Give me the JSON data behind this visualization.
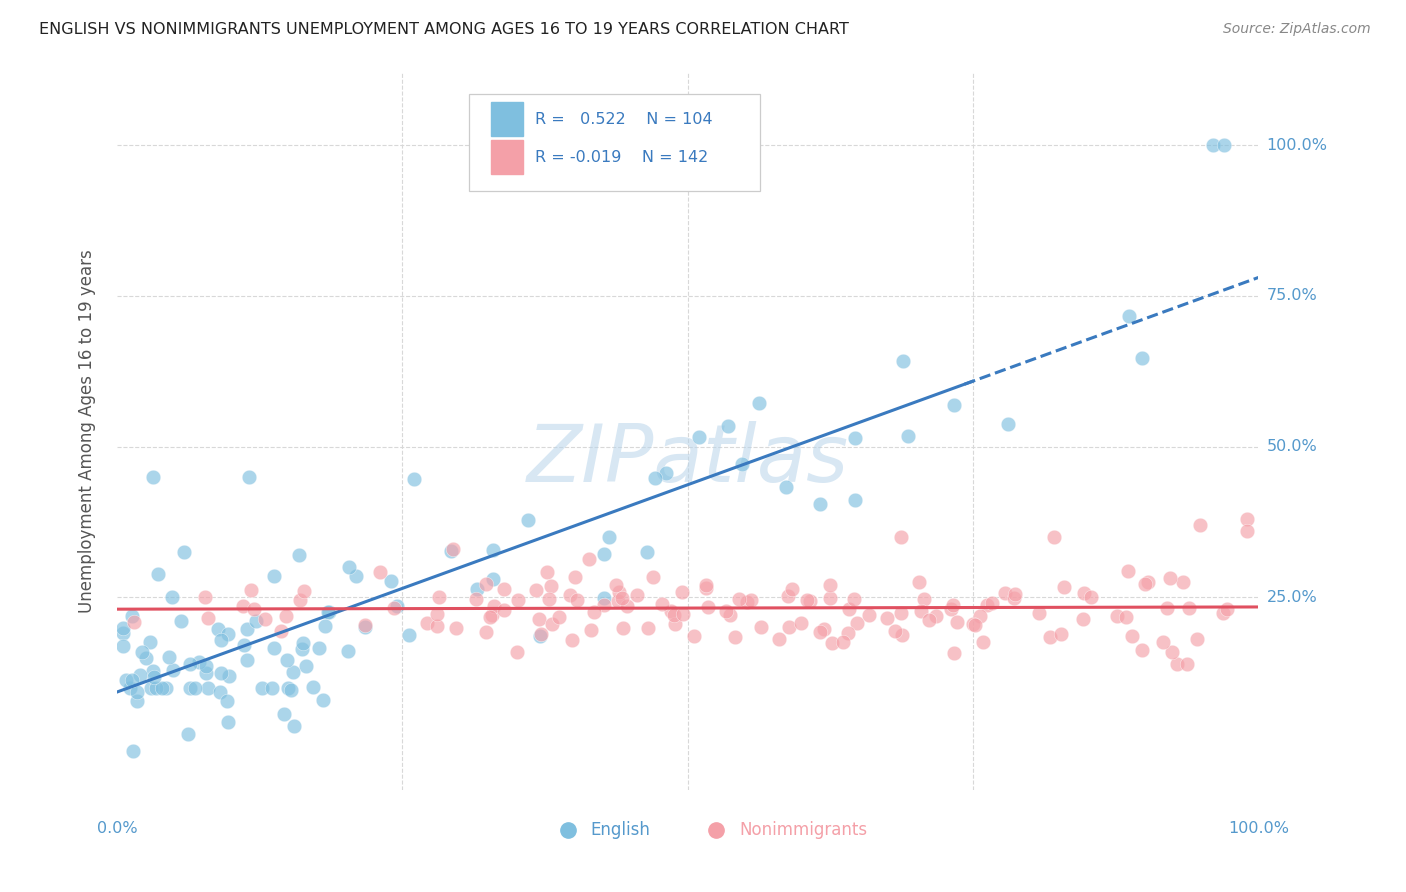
{
  "title": "ENGLISH VS NONIMMIGRANTS UNEMPLOYMENT AMONG AGES 16 TO 19 YEARS CORRELATION CHART",
  "source": "Source: ZipAtlas.com",
  "ylabel": "Unemployment Among Ages 16 to 19 years",
  "english_R": "0.522",
  "english_N": "104",
  "nonimmigrants_R": "-0.019",
  "nonimmigrants_N": "142",
  "xlim": [
    0,
    1
  ],
  "ylim": [
    -0.07,
    1.12
  ],
  "ytick_vals": [
    0.25,
    0.5,
    0.75,
    1.0
  ],
  "ytick_labels": [
    "25.0%",
    "50.0%",
    "75.0%",
    "100.0%"
  ],
  "xtick_vals": [
    0.0,
    0.25,
    0.5,
    0.75,
    1.0
  ],
  "english_color": "#7fbfdf",
  "nonimmigrants_color": "#f4a0a8",
  "english_line_color": "#3a7abf",
  "nonimmigrants_line_color": "#e05060",
  "tick_color": "#5599cc",
  "watermark_color": "#b8d4ea",
  "grid_color": "#d8d8d8",
  "title_color": "#222222",
  "axis_label_color": "#555555",
  "source_color": "#888888",
  "background_color": "#ffffff",
  "legend_border_color": "#cccccc"
}
